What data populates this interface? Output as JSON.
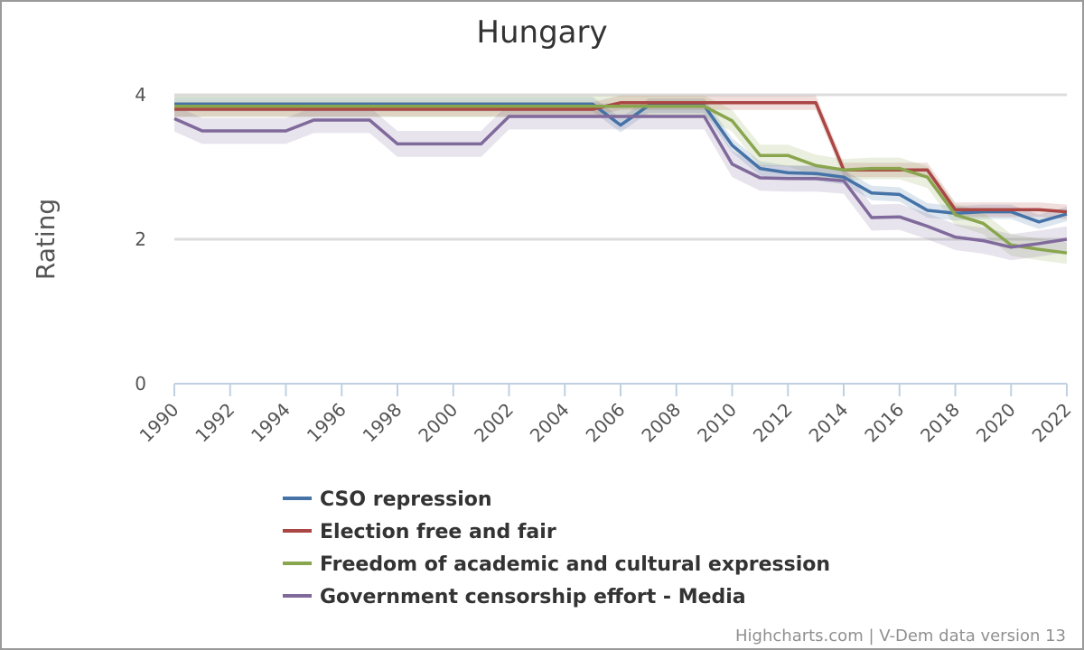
{
  "chart_data": {
    "type": "line",
    "title": "Hungary",
    "xlabel": "",
    "ylabel": "Rating",
    "ylim": [
      0,
      4
    ],
    "yticks": [
      0,
      2,
      4
    ],
    "xlim": [
      1990,
      2022
    ],
    "xticks": [
      "1990",
      "1992",
      "1994",
      "1996",
      "1998",
      "2000",
      "2002",
      "2004",
      "2006",
      "2008",
      "2010",
      "2012",
      "2014",
      "2016",
      "2018",
      "2020",
      "2022"
    ],
    "grid": true,
    "legend_position": "bottom",
    "credits": "Highcharts.com | V-Dem data version 13",
    "x": [
      1990,
      1991,
      1992,
      1993,
      1994,
      1995,
      1996,
      1997,
      1998,
      1999,
      2000,
      2001,
      2002,
      2003,
      2004,
      2005,
      2006,
      2007,
      2008,
      2009,
      2010,
      2011,
      2012,
      2013,
      2014,
      2015,
      2016,
      2017,
      2018,
      2019,
      2020,
      2021,
      2022
    ],
    "series": [
      {
        "name": "CSO repression",
        "color": "#4572a7",
        "values": [
          3.87,
          3.87,
          3.87,
          3.87,
          3.87,
          3.87,
          3.87,
          3.87,
          3.87,
          3.87,
          3.87,
          3.87,
          3.87,
          3.87,
          3.87,
          3.87,
          3.58,
          3.85,
          3.85,
          3.85,
          3.3,
          2.98,
          2.92,
          2.91,
          2.86,
          2.64,
          2.62,
          2.4,
          2.36,
          2.38,
          2.38,
          2.24,
          2.35
        ],
        "band": 0.1
      },
      {
        "name": "Election free and fair",
        "color": "#aa4643",
        "values": [
          3.8,
          3.8,
          3.8,
          3.8,
          3.8,
          3.8,
          3.8,
          3.8,
          3.8,
          3.8,
          3.8,
          3.8,
          3.8,
          3.8,
          3.8,
          3.8,
          3.89,
          3.89,
          3.89,
          3.89,
          3.89,
          3.89,
          3.89,
          3.89,
          2.96,
          2.96,
          2.96,
          2.96,
          2.41,
          2.41,
          2.41,
          2.41,
          2.38
        ],
        "band": 0.1
      },
      {
        "name": "Freedom of academic and cultural expression",
        "color": "#89a54e",
        "values": [
          3.84,
          3.84,
          3.84,
          3.84,
          3.84,
          3.84,
          3.84,
          3.84,
          3.84,
          3.84,
          3.84,
          3.84,
          3.84,
          3.84,
          3.84,
          3.84,
          3.84,
          3.84,
          3.84,
          3.84,
          3.64,
          3.16,
          3.16,
          3.02,
          2.96,
          2.98,
          2.98,
          2.86,
          2.34,
          2.22,
          1.92,
          1.86,
          1.81
        ],
        "band": 0.15
      },
      {
        "name": "Government censorship effort - Media",
        "color": "#80699b",
        "values": [
          3.67,
          3.5,
          3.5,
          3.5,
          3.5,
          3.65,
          3.65,
          3.65,
          3.32,
          3.32,
          3.32,
          3.32,
          3.7,
          3.7,
          3.7,
          3.7,
          3.7,
          3.7,
          3.7,
          3.7,
          3.04,
          2.85,
          2.84,
          2.84,
          2.81,
          2.3,
          2.31,
          2.18,
          2.03,
          1.98,
          1.89,
          1.94,
          2.0
        ],
        "band": 0.18
      }
    ]
  }
}
